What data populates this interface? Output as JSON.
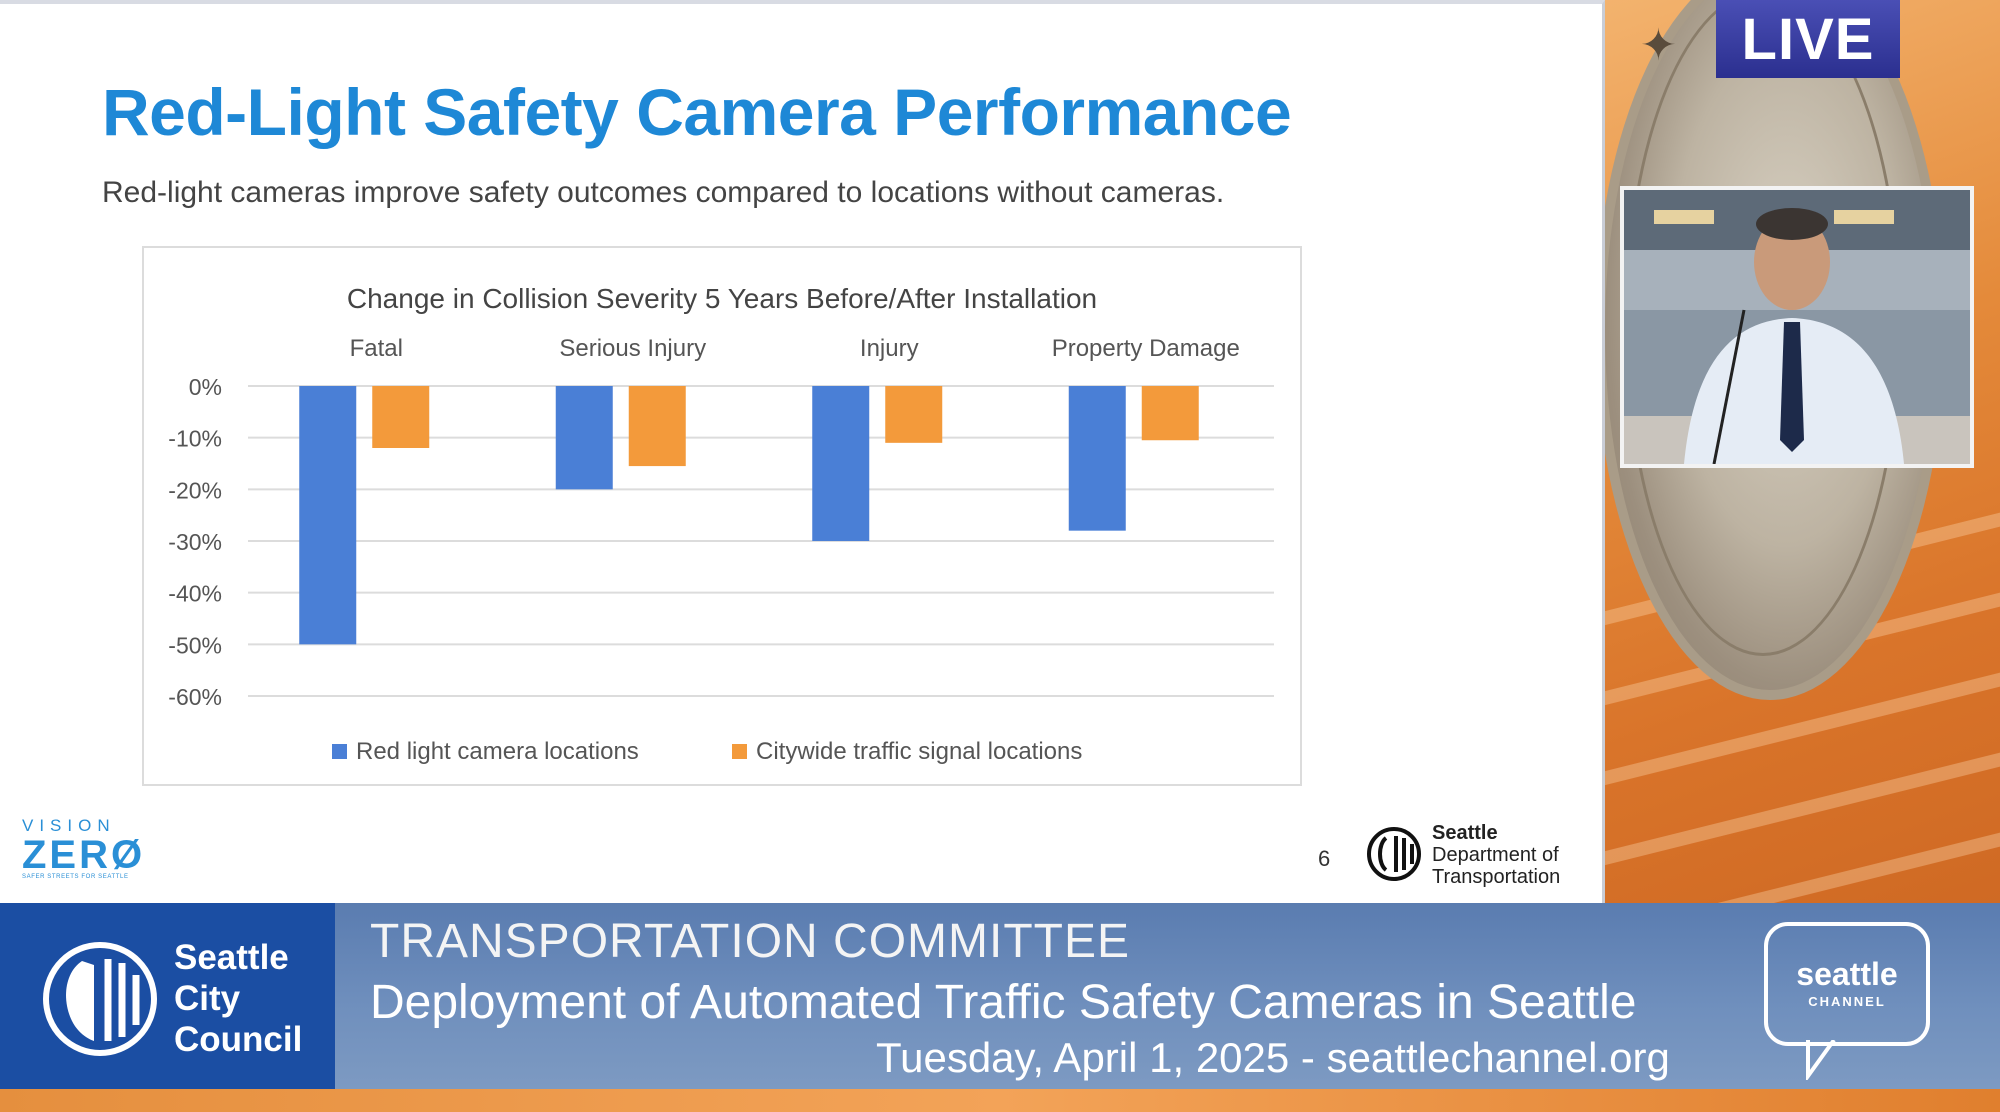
{
  "overlay": {
    "live_label": "LIVE"
  },
  "slide": {
    "title": "Red-Light Safety Camera Performance",
    "subtitle": "Red-light cameras improve safety outcomes compared to locations without cameras.",
    "page_number": "6",
    "vision_zero": {
      "top": "VISION",
      "main": "ZERØ",
      "tagline": "SAFER STREETS FOR SEATTLE"
    },
    "sdot": {
      "line1": "Seattle",
      "line2": "Department of",
      "line3": "Transportation"
    }
  },
  "chart_data": {
    "type": "bar",
    "title": "Change in Collision Severity 5 Years Before/After Installation",
    "categories": [
      "Fatal",
      "Serious Injury",
      "Injury",
      "Property Damage"
    ],
    "series": [
      {
        "name": "Red light camera locations",
        "color": "#4a7fd6",
        "values": [
          -50,
          -20,
          -30,
          -28
        ]
      },
      {
        "name": "Citywide traffic signal locations",
        "color": "#f39a3b",
        "values": [
          -12,
          -15.5,
          -11,
          -10.5
        ]
      }
    ],
    "ylim": [
      -60,
      0
    ],
    "yticks": [
      "0%",
      "-10%",
      "-20%",
      "-30%",
      "-40%",
      "-50%",
      "-60%"
    ],
    "grid": true,
    "legend": "bottom"
  },
  "lower_third": {
    "council": [
      "Seattle",
      "City",
      "Council"
    ],
    "line1": "TRANSPORTATION COMMITTEE",
    "line2": "Deployment of Automated Traffic Safety Cameras in Seattle",
    "line3": "Tuesday, April 1, 2025 - seattlechannel.org",
    "channel_name": "seattle",
    "channel_sub": "CHANNEL"
  }
}
